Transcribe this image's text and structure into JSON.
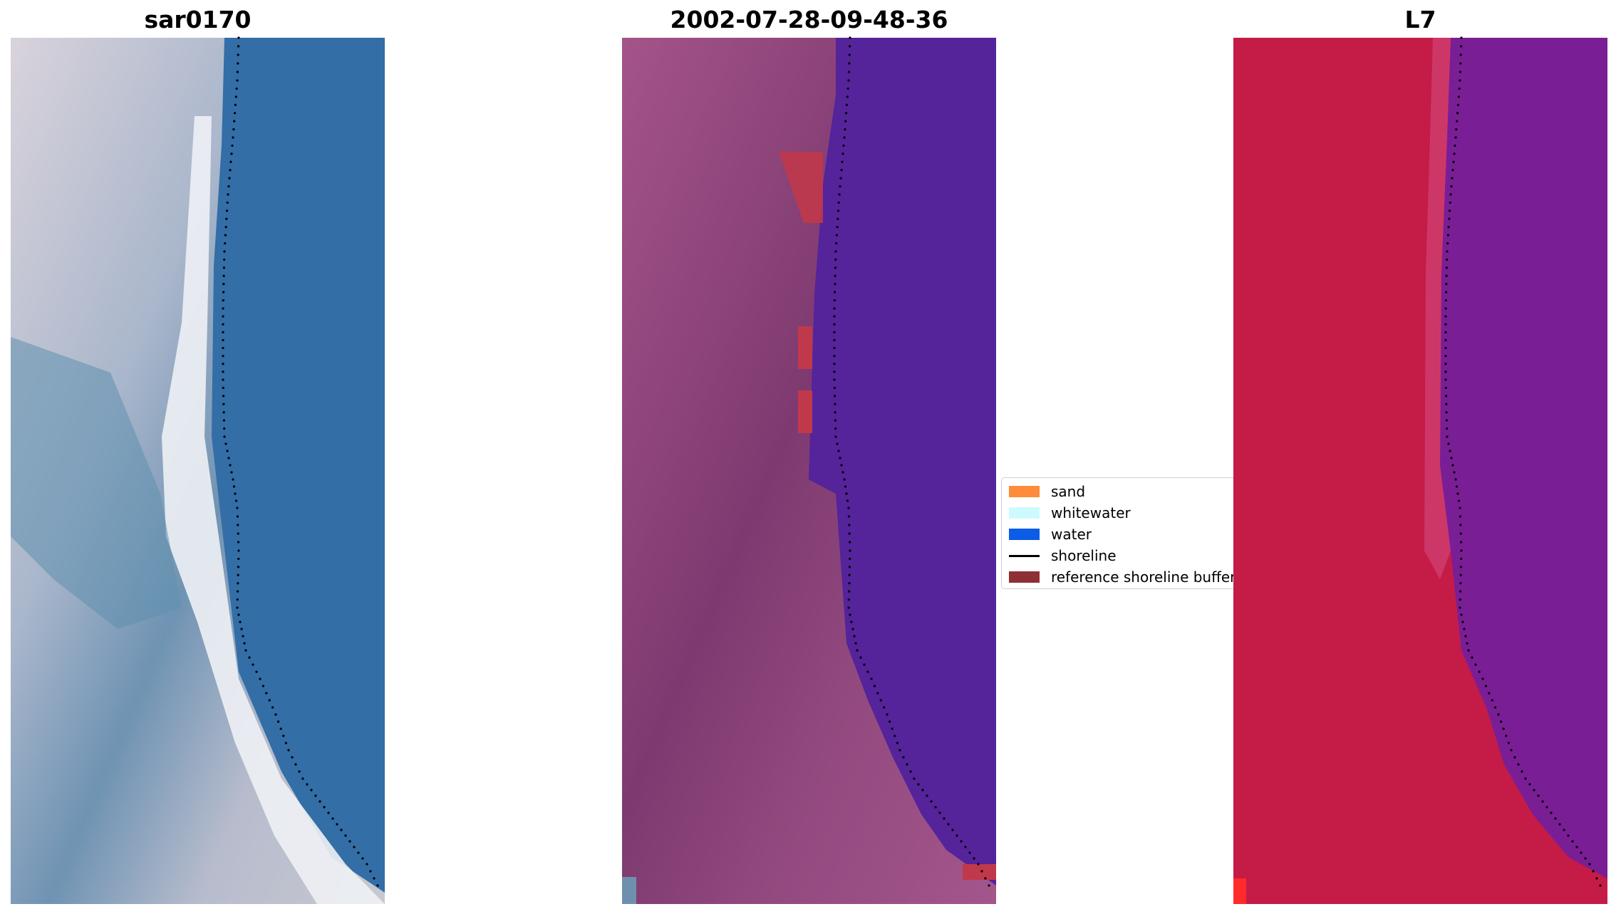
{
  "titles": {
    "panel_1": "sar0170",
    "panel_2": "2002-07-28-09-48-36",
    "panel_3": "L7"
  },
  "legend": {
    "items": [
      {
        "label": "sand",
        "color": "#ff8c3a",
        "kind": "patch"
      },
      {
        "label": "whitewater",
        "color": "#cdfaff",
        "kind": "patch"
      },
      {
        "label": "water",
        "color": "#0b5ce6",
        "kind": "patch"
      },
      {
        "label": "shoreline",
        "color": "#000000",
        "kind": "line"
      },
      {
        "label": "reference shoreline buffer",
        "color": "#8e2f36",
        "kind": "patch"
      }
    ]
  },
  "colors": {
    "rgb_water": "#3570a8",
    "rgb_land": "#a9b3c8",
    "rgb_whitewater": "#f2f4f6",
    "classified_land": "#9a4b84",
    "classified_water": "#55239a",
    "classified_buffer": "#c0394a",
    "mndwi_land": "#c41b47",
    "mndwi_water": "#7a1e96",
    "shoreline_dots": "#000000"
  }
}
